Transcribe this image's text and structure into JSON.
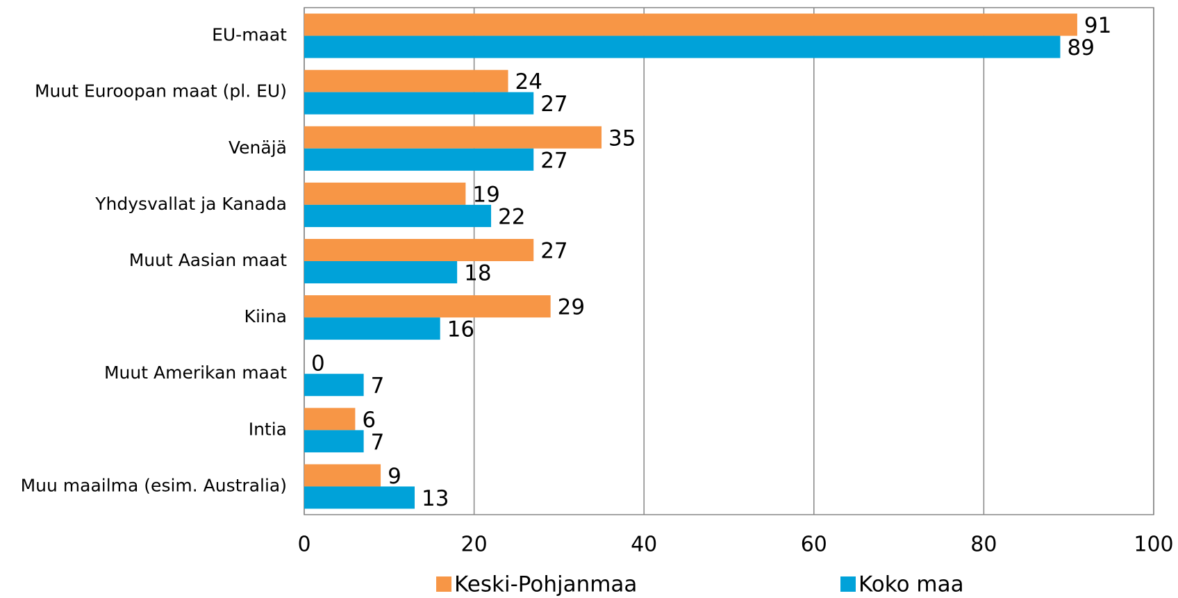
{
  "chart_data": {
    "type": "hbar",
    "categories": [
      "EU-maat",
      "Muut Euroopan maat (pl. EU)",
      "Venäjä",
      "Yhdysvallat ja Kanada",
      "Muut Aasian maat",
      "Kiina",
      "Muut Amerikan maat",
      "Intia",
      "Muu maailma (esim. Australia)"
    ],
    "series": [
      {
        "name": "Keski-Pohjanmaa",
        "color": "#f79646",
        "values": [
          91,
          24,
          35,
          19,
          27,
          29,
          0,
          6,
          9
        ]
      },
      {
        "name": "Koko maa",
        "color": "#00a2d9",
        "values": [
          89,
          27,
          27,
          22,
          18,
          16,
          7,
          7,
          13
        ]
      }
    ],
    "xlim": [
      0,
      100
    ],
    "xticks": [
      0,
      20,
      40,
      60,
      80,
      100
    ],
    "grid": true,
    "legend": "bottom"
  }
}
